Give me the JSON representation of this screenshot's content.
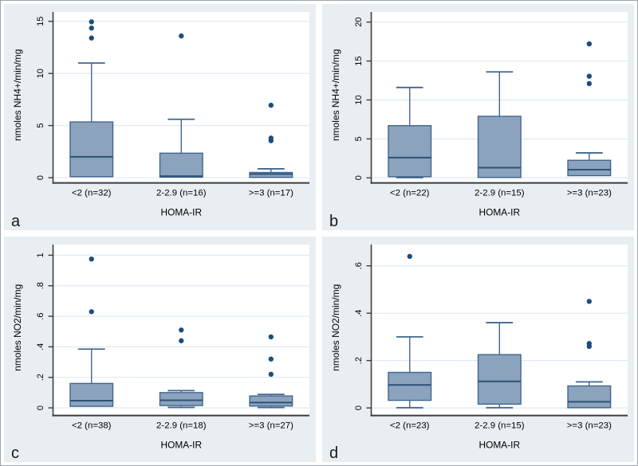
{
  "colors": {
    "panel_bg": "#e8eef1",
    "plot_bg": "#ffffff",
    "grid": "#dfe9f4",
    "box_fill": "#8ba3bd",
    "box_stroke": "#416690",
    "median_stroke": "#2d5377",
    "whisker_stroke": "#416690",
    "outlier_fill": "#1c4d7c",
    "axis_line": "#3c3c3c",
    "text": "#000000"
  },
  "chart_data": [
    {
      "type": "box",
      "panel_label": "a",
      "ylabel": "nmoles NH4+/min/mg",
      "xlabel": "HOMA-IR",
      "grid": true,
      "legend": "none",
      "ylim": [
        -0.5,
        15.9
      ],
      "yticks": [
        0,
        5,
        10,
        15
      ],
      "ytick_labels": [
        "0",
        "5",
        "10",
        "15"
      ],
      "categories": [
        "<2 (n=32)",
        "2-2.9 (n=16)",
        ">=3 (n=17)"
      ],
      "boxes": [
        {
          "q1": 0.1,
          "median": 2.0,
          "q3": 5.35,
          "whisker_low": 0.1,
          "whisker_high": 11.0,
          "outliers": [
            13.4,
            14.35,
            14.95
          ]
        },
        {
          "q1": 0.05,
          "median": 0.15,
          "q3": 2.35,
          "whisker_low": 0.05,
          "whisker_high": 5.6,
          "outliers": [
            13.6
          ]
        },
        {
          "q1": 0.03,
          "median": 0.35,
          "q3": 0.5,
          "whisker_low": 0.03,
          "whisker_high": 0.85,
          "outliers": [
            3.55,
            3.8,
            6.95
          ]
        }
      ]
    },
    {
      "type": "box",
      "panel_label": "b",
      "ylabel": "nmoles NH4+/min/mg",
      "xlabel": "HOMA-IR",
      "grid": true,
      "legend": "none",
      "ylim": [
        -0.65,
        21.3
      ],
      "yticks": [
        0,
        5,
        10,
        15,
        20
      ],
      "ytick_labels": [
        "0",
        "5",
        "10",
        "15",
        "20"
      ],
      "categories": [
        "<2 (n=22)",
        "2-2.9 (n=15)",
        ">=3 (n=23)"
      ],
      "boxes": [
        {
          "q1": 0.15,
          "median": 2.6,
          "q3": 6.7,
          "whisker_low": 0.03,
          "whisker_high": 11.6,
          "outliers": []
        },
        {
          "q1": 0.05,
          "median": 1.3,
          "q3": 7.9,
          "whisker_low": 0.05,
          "whisker_high": 13.6,
          "outliers": []
        },
        {
          "q1": 0.28,
          "median": 1.05,
          "q3": 2.25,
          "whisker_low": 0.28,
          "whisker_high": 3.2,
          "outliers": [
            12.1,
            13.05,
            17.2
          ]
        }
      ]
    },
    {
      "type": "box",
      "panel_label": "c",
      "ylabel": "nmoles NO2/min/mg",
      "xlabel": "HOMA-IR",
      "grid": true,
      "legend": "none",
      "ylim": [
        -0.05,
        1.07
      ],
      "yticks": [
        0,
        0.2,
        0.4,
        0.6,
        0.8,
        1
      ],
      "ytick_labels": [
        "0",
        ".2",
        ".4",
        ".6",
        ".8",
        "1"
      ],
      "categories": [
        "<2 (n=38)",
        "2-2.9 (n=18)",
        ">=3 (n=27)"
      ],
      "boxes": [
        {
          "q1": 0.01,
          "median": 0.047,
          "q3": 0.16,
          "whisker_low": 0.01,
          "whisker_high": 0.385,
          "outliers": [
            0.63,
            0.975
          ]
        },
        {
          "q1": 0.015,
          "median": 0.05,
          "q3": 0.1,
          "whisker_low": 0.003,
          "whisker_high": 0.113,
          "outliers": [
            0.44,
            0.51
          ]
        },
        {
          "q1": 0.012,
          "median": 0.035,
          "q3": 0.078,
          "whisker_low": 0.002,
          "whisker_high": 0.088,
          "outliers": [
            0.22,
            0.32,
            0.465
          ]
        }
      ]
    },
    {
      "type": "box",
      "panel_label": "d",
      "ylabel": "nmoles NO2/min/mg",
      "xlabel": "HOMA-IR",
      "grid": true,
      "legend": "none",
      "ylim": [
        -0.032,
        0.69
      ],
      "yticks": [
        0,
        0.2,
        0.4,
        0.6
      ],
      "ytick_labels": [
        "0",
        ".2",
        ".4",
        ".6"
      ],
      "categories": [
        "<2 (n=23)",
        "2-2.9 (n=15)",
        ">=3 (n=23)"
      ],
      "boxes": [
        {
          "q1": 0.032,
          "median": 0.097,
          "q3": 0.15,
          "whisker_low": 0.001,
          "whisker_high": 0.3,
          "outliers": [
            0.64
          ]
        },
        {
          "q1": 0.016,
          "median": 0.112,
          "q3": 0.225,
          "whisker_low": 0.001,
          "whisker_high": 0.36,
          "outliers": []
        },
        {
          "q1": 0.001,
          "median": 0.026,
          "q3": 0.093,
          "whisker_low": 0.001,
          "whisker_high": 0.11,
          "outliers": [
            0.26,
            0.272,
            0.45
          ]
        }
      ]
    }
  ]
}
